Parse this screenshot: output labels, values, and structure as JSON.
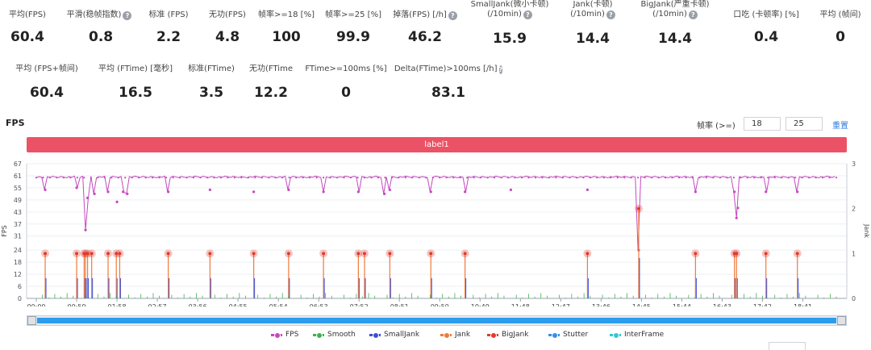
{
  "stats_row1": [
    {
      "label": "平均(FPS)",
      "value": "60.4",
      "help": false
    },
    {
      "label": "平滑(稳帧指数)",
      "value": "0.8",
      "help": true
    },
    {
      "label": "标准 (FPS)",
      "value": "2.2",
      "help": false
    },
    {
      "label": "无功(FPS)",
      "value": "4.8",
      "help": false
    },
    {
      "label": "帧率>=18 [%]",
      "value": "100",
      "help": false
    },
    {
      "label": "帧率>=25 [%]",
      "value": "99.9",
      "help": false
    },
    {
      "label": "掉落(FPS) [/h]",
      "value": "46.2",
      "help": true
    },
    {
      "label": "SmallJank(微小卡顿)",
      "label2": "(/10min)",
      "value": "15.9",
      "help": true
    },
    {
      "label": "Jank(卡顿)",
      "label2": "(/10min)",
      "value": "14.4",
      "help": true
    },
    {
      "label": "BigJank(严重卡顿)",
      "label2": "(/10min)",
      "value": "14.4",
      "help": true
    },
    {
      "label": "口吃 (卡顿率) [%]",
      "value": "0.4",
      "help": false
    },
    {
      "label": "平均 (帧间)",
      "value": "0",
      "help": false
    }
  ],
  "stats_row2": [
    {
      "label": "平均 (FPS+帧间)",
      "value": "60.4",
      "help": false
    },
    {
      "label": "平均 (FTime) [毫秒]",
      "value": "16.5",
      "help": false
    },
    {
      "label": "标准(FTime)",
      "value": "3.5",
      "help": false
    },
    {
      "label": "无功(FTime",
      "value": "12.2",
      "help": false
    },
    {
      "label": "FTime>=100ms [%]",
      "value": "0",
      "help": false
    },
    {
      "label": "Delta(FTime)>100ms [/h]",
      "value": "83.1",
      "help": true
    }
  ],
  "help_glyph": "?",
  "chart_title": "FPS",
  "threshold": {
    "label": "帧率 (>=)",
    "value1": "18",
    "value2": "25",
    "reset": "重置"
  },
  "label_band": "label1",
  "colors": {
    "fps": "#c549c0",
    "smooth": "#3cb44b",
    "smalljank": "#3d4fd8",
    "jank": "#f07a3a",
    "bigjank": "#e23a2e",
    "stutter": "#3a8ee6",
    "interframe": "#35c7d6",
    "band": "#ec5266"
  },
  "chart_data": {
    "type": "line",
    "title": "FPS",
    "ylabel": "FPS",
    "y2label": "Jank",
    "ylim": [
      0,
      67
    ],
    "y2lim": [
      0,
      3
    ],
    "yticks": [
      0,
      6,
      12,
      18,
      24,
      31,
      37,
      43,
      49,
      55,
      61,
      67
    ],
    "y2ticks": [
      0,
      1,
      2,
      3
    ],
    "xticks": [
      "00:00",
      "00:59",
      "01:58",
      "02:57",
      "03:56",
      "04:55",
      "05:54",
      "06:53",
      "07:52",
      "08:51",
      "09:50",
      "10:49",
      "11:48",
      "12:47",
      "13:46",
      "14:45",
      "15:44",
      "16:43",
      "17:42",
      "18:41"
    ],
    "fps_baseline": 60.4,
    "fps_dips": [
      {
        "x": "00:13",
        "y": 54
      },
      {
        "x": "00:59",
        "y": 55
      },
      {
        "x": "01:12",
        "y": 34
      },
      {
        "x": "01:15",
        "y": 50
      },
      {
        "x": "01:25",
        "y": 52
      },
      {
        "x": "01:45",
        "y": 53
      },
      {
        "x": "01:58",
        "y": 48
      },
      {
        "x": "02:07",
        "y": 53
      },
      {
        "x": "02:13",
        "y": 52
      },
      {
        "x": "03:13",
        "y": 53
      },
      {
        "x": "04:14",
        "y": 54
      },
      {
        "x": "05:18",
        "y": 53
      },
      {
        "x": "06:09",
        "y": 54
      },
      {
        "x": "07:00",
        "y": 53
      },
      {
        "x": "07:51",
        "y": 53
      },
      {
        "x": "08:29",
        "y": 52
      },
      {
        "x": "08:37",
        "y": 54
      },
      {
        "x": "09:37",
        "y": 53
      },
      {
        "x": "10:27",
        "y": 53
      },
      {
        "x": "11:34",
        "y": 54
      },
      {
        "x": "13:26",
        "y": 54
      },
      {
        "x": "14:41",
        "y": 24
      },
      {
        "x": "16:04",
        "y": 53
      },
      {
        "x": "17:01",
        "y": 53
      },
      {
        "x": "17:04",
        "y": 40
      },
      {
        "x": "17:06",
        "y": 45
      },
      {
        "x": "17:47",
        "y": 53
      },
      {
        "x": "18:33",
        "y": 53
      }
    ],
    "jank_events": [
      {
        "x": "00:13",
        "jank": 1
      },
      {
        "x": "00:59",
        "jank": 1
      },
      {
        "x": "01:10",
        "jank": 1
      },
      {
        "x": "01:12",
        "jank": 1
      },
      {
        "x": "01:15",
        "jank": 1
      },
      {
        "x": "01:21",
        "jank": 1
      },
      {
        "x": "01:45",
        "jank": 1
      },
      {
        "x": "01:57",
        "jank": 1
      },
      {
        "x": "02:02",
        "jank": 1
      },
      {
        "x": "03:13",
        "jank": 1
      },
      {
        "x": "04:14",
        "jank": 1
      },
      {
        "x": "05:18",
        "jank": 1
      },
      {
        "x": "06:09",
        "jank": 1
      },
      {
        "x": "07:00",
        "jank": 1
      },
      {
        "x": "07:51",
        "jank": 1
      },
      {
        "x": "08:00",
        "jank": 1
      },
      {
        "x": "08:37",
        "jank": 1
      },
      {
        "x": "09:37",
        "jank": 1
      },
      {
        "x": "10:27",
        "jank": 1
      },
      {
        "x": "13:26",
        "jank": 1
      },
      {
        "x": "14:41",
        "jank": 2
      },
      {
        "x": "16:04",
        "jank": 1
      },
      {
        "x": "17:01",
        "jank": 1
      },
      {
        "x": "17:04",
        "jank": 1
      },
      {
        "x": "17:47",
        "jank": 1
      },
      {
        "x": "18:33",
        "jank": 1
      }
    ],
    "series_legend": [
      {
        "name": "FPS",
        "color": "#c549c0"
      },
      {
        "name": "Smooth",
        "color": "#3cb44b"
      },
      {
        "name": "SmallJank",
        "color": "#3d4fd8"
      },
      {
        "name": "Jank",
        "color": "#f07a3a"
      },
      {
        "name": "BigJank",
        "color": "#e23a2e"
      },
      {
        "name": "Stutter",
        "color": "#3a8ee6"
      },
      {
        "name": "InterFrame",
        "color": "#35c7d6"
      }
    ],
    "grid": true,
    "legend_position": "bottom"
  }
}
